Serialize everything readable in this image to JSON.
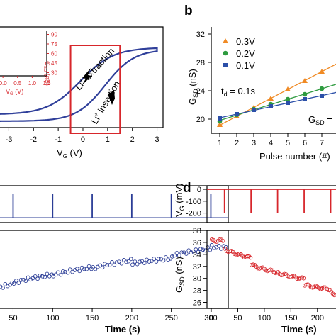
{
  "panel_labels": {
    "b": "b",
    "d": "d"
  },
  "chart_data": [
    {
      "panel": "a",
      "type": "line",
      "xlabel": "V_G (V)",
      "xlim": [
        -3.5,
        3.3
      ],
      "xticks": [
        -3,
        -2,
        -1,
        0,
        1,
        2,
        3
      ],
      "annotations": [
        "Li+ extraction",
        "Li+ insertion"
      ],
      "color": "#2f3f9a",
      "highlight_box": {
        "x": [
          -0.5,
          1.5
        ],
        "color": "#d7262b"
      },
      "inset": {
        "type": "line",
        "xlabel": "V_G (V)",
        "ylabel": "G_SD (nS)",
        "xticks": [
          0.0,
          0.5,
          1.0,
          1.5
        ],
        "yticks": [
          30,
          45,
          60,
          75,
          90
        ],
        "xlim": [
          -0.1,
          1.5
        ],
        "ylim": [
          25,
          95
        ],
        "frame_color": "#d7262b"
      }
    },
    {
      "panel": "b",
      "type": "scatter",
      "xlabel": "Pulse number (#)",
      "ylabel": "G_SD (nS)",
      "xlim": [
        0.5,
        8.5
      ],
      "ylim": [
        18,
        33
      ],
      "xticks": [
        1,
        2,
        3,
        4,
        5,
        6,
        7
      ],
      "yticks": [
        20,
        24,
        28,
        32
      ],
      "annotation": "t_d = 0.1s",
      "equation_partial": "G_SD = ",
      "series": [
        {
          "name": "0.3V",
          "marker": "triangle",
          "color": "#f08a24",
          "x": [
            1,
            2,
            3,
            4,
            5,
            6,
            7,
            8
          ],
          "y": [
            19.2,
            20.4,
            21.6,
            22.9,
            24.2,
            25.4,
            26.7,
            28.0
          ]
        },
        {
          "name": "0.2V",
          "marker": "circle",
          "color": "#2e9b3f",
          "x": [
            1,
            2,
            3,
            4,
            5,
            6,
            7,
            8
          ],
          "y": [
            19.7,
            20.6,
            21.4,
            22.1,
            22.8,
            23.5,
            24.3,
            25.0
          ]
        },
        {
          "name": "0.1V",
          "marker": "square",
          "color": "#2b4fa8",
          "x": [
            1,
            2,
            3,
            4,
            5,
            6,
            7,
            8
          ],
          "y": [
            20.1,
            20.7,
            21.3,
            21.8,
            22.3,
            22.8,
            23.3,
            23.8
          ]
        }
      ]
    },
    {
      "panel": "c",
      "type": "scatter",
      "xlabel": "Time (s)",
      "xlim": [
        20,
        322
      ],
      "xticks": [
        50,
        100,
        150,
        200,
        250,
        300
      ],
      "top_trace": {
        "color": "#2b3d96",
        "pulse_times": [
          0,
          50,
          100,
          150,
          200,
          250,
          300
        ]
      },
      "bottom_color": "#2b3d96",
      "ylim": [
        27,
        39
      ],
      "steps": [
        {
          "t": [
            0,
            50
          ],
          "y": [
            28.6,
            30.8
          ]
        },
        {
          "t": [
            50,
            100
          ],
          "y": [
            30.8,
            32.2
          ]
        },
        {
          "t": [
            100,
            150
          ],
          "y": [
            32.0,
            33.3
          ]
        },
        {
          "t": [
            150,
            200
          ],
          "y": [
            33.0,
            34.4
          ]
        },
        {
          "t": [
            200,
            250
          ],
          "y": [
            33.8,
            34.7
          ]
        },
        {
          "t": [
            250,
            300
          ],
          "y": [
            35.0,
            36.2
          ]
        },
        {
          "t": [
            300,
            320
          ],
          "y": [
            36.5,
            36.4
          ]
        }
      ]
    },
    {
      "panel": "d",
      "type": "scatter",
      "xlabel": "Time (s)",
      "top_ylabel": "V_G (mV)",
      "bottom_ylabel": "G_SD (nS)",
      "xlim": [
        -8,
        235
      ],
      "xticks": [
        0,
        50,
        100,
        150,
        200
      ],
      "top_ylim": [
        -280,
        30
      ],
      "top_yticks": [
        0,
        -100,
        -200
      ],
      "bottom_ylim": [
        25,
        38
      ],
      "bottom_yticks": [
        26,
        28,
        30,
        32,
        34,
        36,
        38
      ],
      "color": "#d7262b",
      "pulse_times": [
        25,
        75,
        125,
        175,
        225
      ],
      "steps": [
        {
          "t": [
            0,
            25
          ],
          "y": [
            36.3,
            36.3
          ]
        },
        {
          "t": [
            25,
            75
          ],
          "y": [
            35.0,
            33.4
          ]
        },
        {
          "t": [
            75,
            125
          ],
          "y": [
            32.4,
            31.0
          ]
        },
        {
          "t": [
            125,
            175
          ],
          "y": [
            31.0,
            29.9
          ]
        },
        {
          "t": [
            175,
            225
          ],
          "y": [
            29.0,
            28.2
          ]
        },
        {
          "t": [
            225,
            240
          ],
          "y": [
            27.7,
            27.2
          ]
        }
      ]
    }
  ]
}
